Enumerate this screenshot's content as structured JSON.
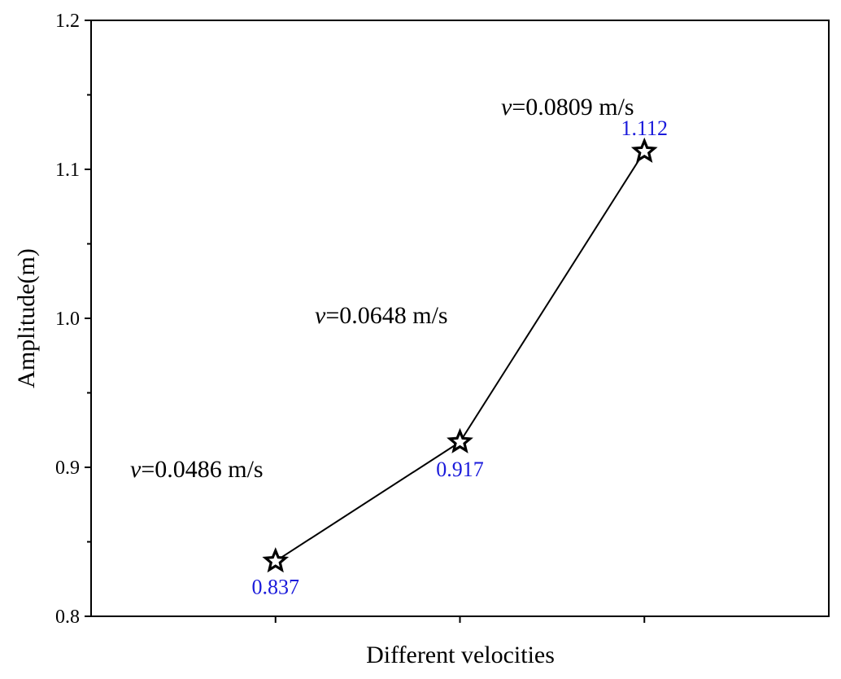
{
  "chart_data": {
    "type": "line",
    "title": "",
    "xlabel": "Different velocities",
    "ylabel": "Amplitude(m)",
    "ylim": [
      0.8,
      1.2
    ],
    "yticks": [
      "0.8",
      "0.9",
      "1.0",
      "1.1",
      "1.2"
    ],
    "grid": false,
    "marker": "star",
    "series": [
      {
        "name": "Amplitude",
        "x": [
          1,
          2,
          3
        ],
        "values": [
          0.837,
          0.917,
          1.112
        ],
        "labels": [
          "0.837",
          "0.917",
          "1.112"
        ]
      }
    ],
    "annotations": [
      {
        "var": "v",
        "text": "=0.0486 m/s"
      },
      {
        "var": "v",
        "text": "=0.0648 m/s"
      },
      {
        "var": "v",
        "text": "=0.0809 m/s"
      }
    ],
    "label_color": "#1a1adb",
    "line_color": "#000000"
  }
}
